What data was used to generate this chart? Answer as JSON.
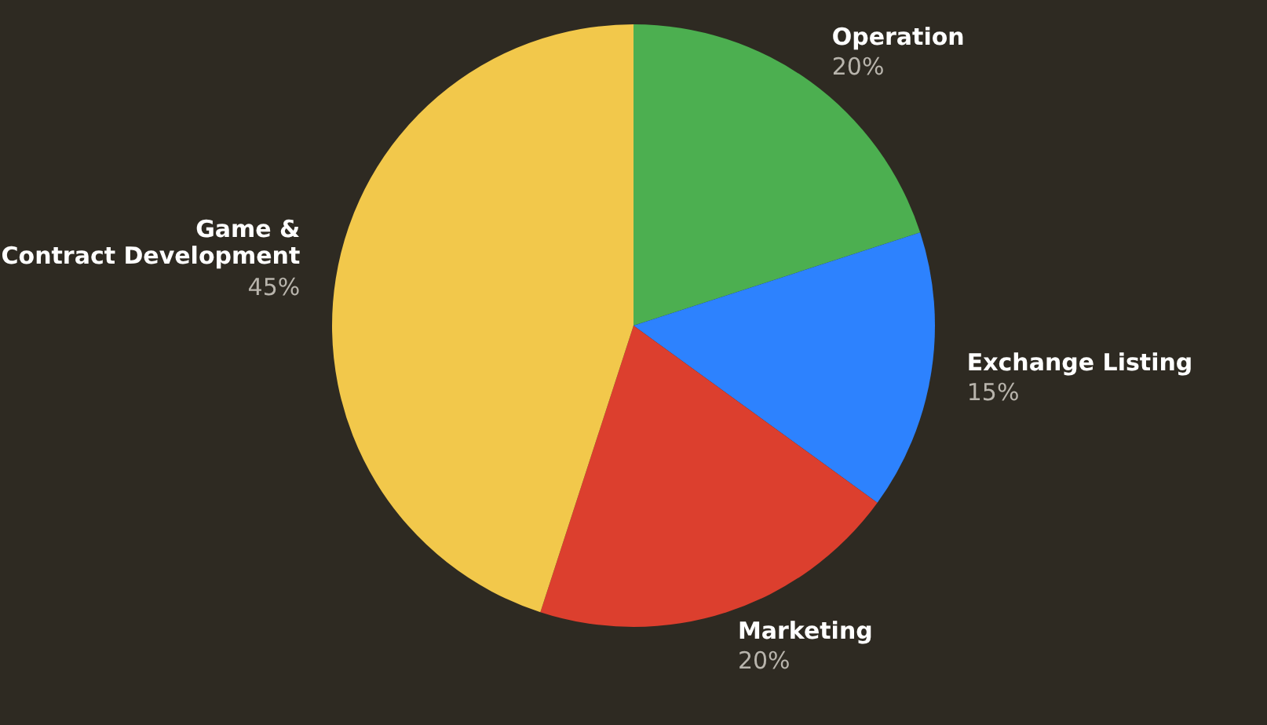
{
  "chart_data": {
    "type": "pie",
    "categories": [
      "Operation",
      "Exchange Listing",
      "Marketing",
      "Game &\nContract Development"
    ],
    "values": [
      20,
      15,
      20,
      45
    ],
    "value_labels": [
      "20%",
      "15%",
      "20%",
      "45%"
    ],
    "colors": [
      "#4caf50",
      "#2d82fe",
      "#dc3f2e",
      "#f2c84b"
    ]
  }
}
